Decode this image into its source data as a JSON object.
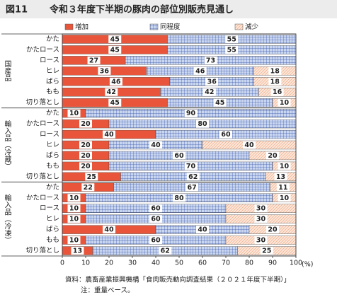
{
  "chart_data": {
    "type": "stacked-bar-horizontal",
    "figure_label": "図11",
    "title": "令和３年度下半期の豚肉の部位別販売見通し",
    "groups": [
      {
        "label": "国産品",
        "categories": [
          "かた",
          "かたロース",
          "ロース",
          "ヒレ",
          "ばら",
          "もも",
          "切り落とし"
        ]
      },
      {
        "label": "輸入品（冷蔵）",
        "categories": [
          "かた",
          "かたロース",
          "ロース",
          "ヒレ",
          "ばら",
          "もも",
          "切り落とし"
        ]
      },
      {
        "label": "輸入品（冷凍）",
        "categories": [
          "かた",
          "かたロース",
          "ロース",
          "ヒレ",
          "ばら",
          "もも",
          "切り落とし"
        ]
      }
    ],
    "series": [
      {
        "name": "増加",
        "color": "#e9553a",
        "pattern": "solid",
        "values": [
          45,
          45,
          27,
          36,
          46,
          42,
          45,
          10,
          20,
          40,
          20,
          20,
          20,
          25,
          22,
          10,
          10,
          10,
          40,
          10,
          13
        ]
      },
      {
        "name": "同程度",
        "color": "#c9d6f0",
        "pattern": "grid",
        "values": [
          55,
          55,
          73,
          46,
          36,
          42,
          45,
          90,
          80,
          60,
          40,
          60,
          70,
          62,
          67,
          80,
          60,
          60,
          40,
          60,
          62
        ]
      },
      {
        "name": "減少",
        "color": "#fde6d8",
        "pattern": "diagonal",
        "values": [
          0,
          0,
          0,
          18,
          18,
          16,
          10,
          0,
          0,
          0,
          40,
          20,
          10,
          13,
          11,
          10,
          30,
          30,
          20,
          30,
          25
        ]
      }
    ],
    "xlim": [
      0,
      100
    ],
    "xticks": [
      0,
      10,
      20,
      30,
      40,
      50,
      60,
      70,
      80,
      90,
      100
    ],
    "x_unit": "(%)",
    "source": "資料：農畜産業振興機構「食肉販売動向調査結果（２０２１年度下半期）」",
    "note": "注：重量ベース。"
  }
}
